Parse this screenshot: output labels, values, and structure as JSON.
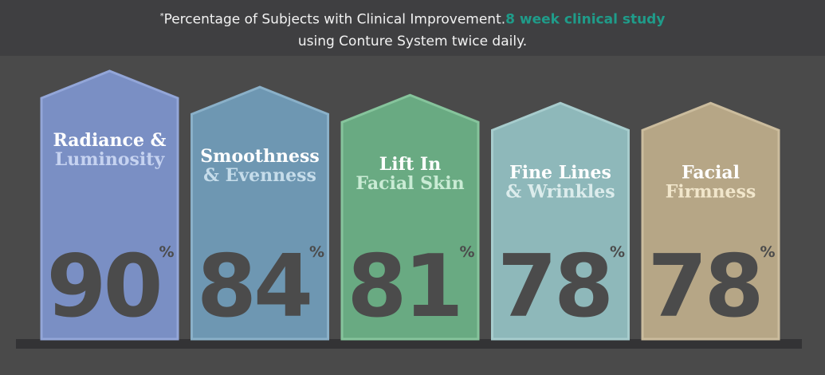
{
  "header": {
    "asterisk": "*",
    "line1": "Percentage of Subjects with Clinical Improvement.",
    "accent": "8 week clinical study",
    "line2": "using Conture System twice daily."
  },
  "chart_data": {
    "type": "bar",
    "ylim": [
      0,
      100
    ],
    "unit": "%",
    "categories": [
      {
        "line1": "Radiance &",
        "line2": "Luminosity"
      },
      {
        "line1": "Smoothness",
        "line2": "& Evenness"
      },
      {
        "line1": "Lift In",
        "line2": "Facial Skin"
      },
      {
        "line1": "Fine Lines",
        "line2": "& Wrinkles"
      },
      {
        "line1": "Facial",
        "line2": "Firmness"
      }
    ],
    "values": [
      90,
      84,
      81,
      78,
      78
    ],
    "colors": [
      {
        "fill": "#7a8fc4",
        "stroke": "#93a6d8",
        "sub": "#c5d2f0"
      },
      {
        "fill": "#6e97b2",
        "stroke": "#8ab0c8",
        "sub": "#c5dcea"
      },
      {
        "fill": "#69aa82",
        "stroke": "#86c49c",
        "sub": "#c9ebd4"
      },
      {
        "fill": "#8eb8ba",
        "stroke": "#a7cccd",
        "sub": "#dcecec"
      },
      {
        "fill": "#b6a686",
        "stroke": "#cbbc9d",
        "sub": "#f1e6cb"
      }
    ],
    "shelf_color": "#333335"
  }
}
